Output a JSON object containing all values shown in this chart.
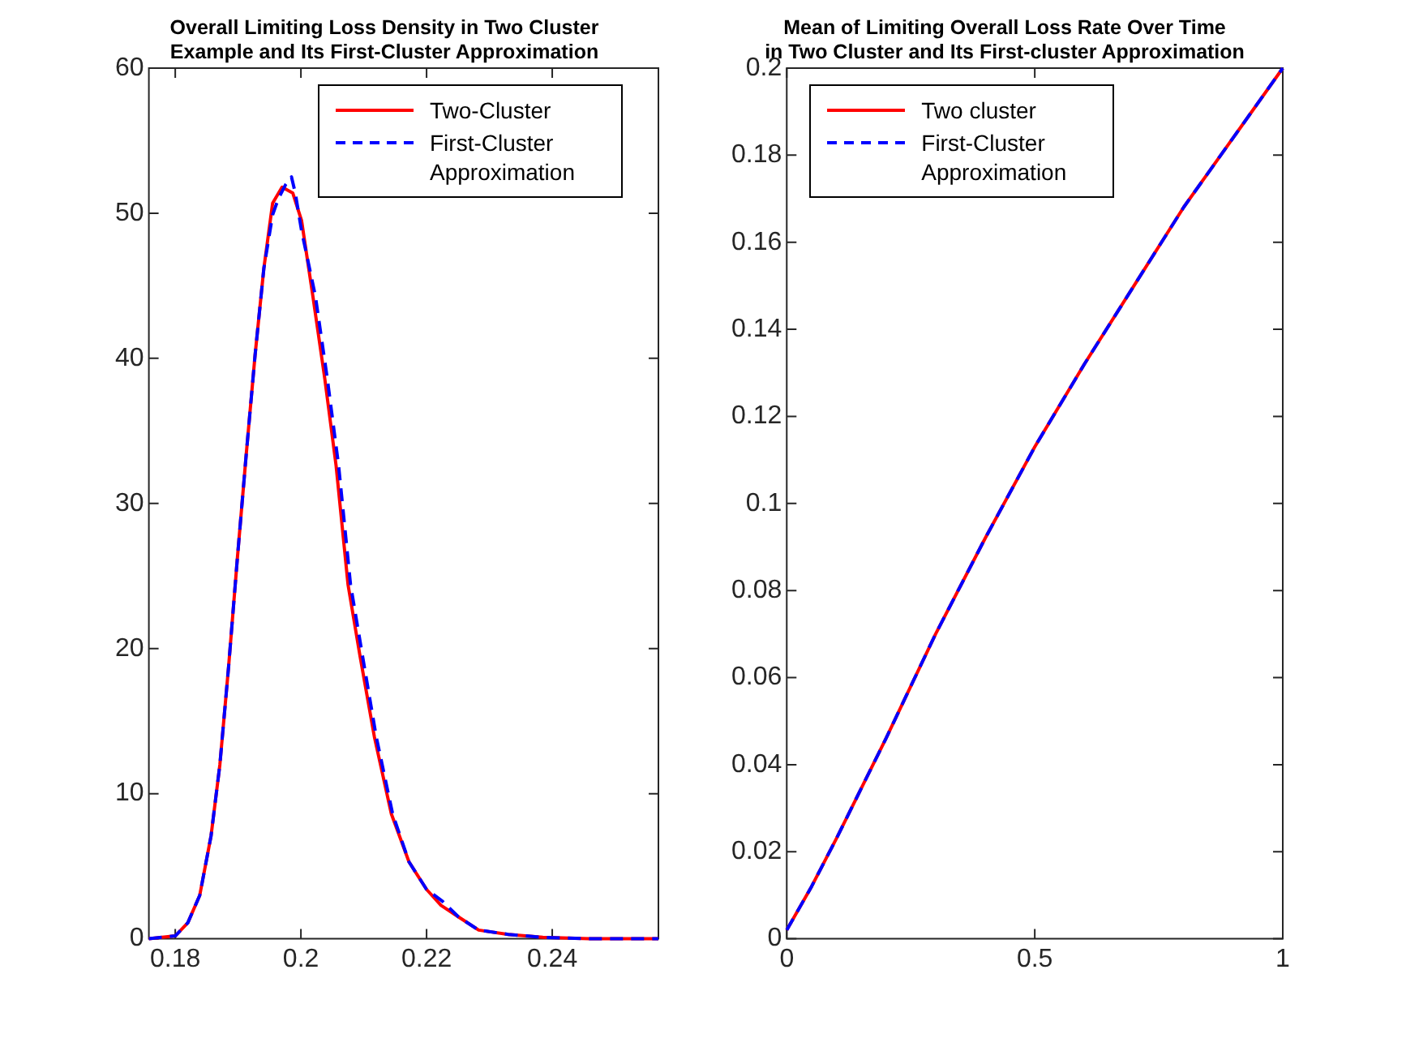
{
  "chart_data": [
    {
      "type": "line",
      "title": "Overall Limiting Loss Density in Two Cluster\nExample and Its First-Cluster Approximation",
      "legend": "top right",
      "xlim": [
        0.1758,
        0.2569
      ],
      "xticks": [
        0.18,
        0.2,
        0.22,
        0.24
      ],
      "ylim": [
        0,
        60
      ],
      "yticks": [
        0,
        10,
        20,
        30,
        40,
        50,
        60
      ],
      "series": [
        {
          "name": "Two-Cluster",
          "color": "#ff0000",
          "line_style": "solid",
          "x": [
            0.1758,
            0.18,
            0.182,
            0.1839,
            0.1857,
            0.1871,
            0.1885,
            0.1899,
            0.1913,
            0.1927,
            0.1941,
            0.1955,
            0.197,
            0.1987,
            0.2001,
            0.2019,
            0.2038,
            0.2056,
            0.2075,
            0.2094,
            0.2117,
            0.2144,
            0.2172,
            0.22,
            0.2223,
            0.2251,
            0.2283,
            0.233,
            0.2385,
            0.2459,
            0.2569
          ],
          "values": [
            0,
            0.2,
            1.1,
            3,
            7.1,
            12,
            18.8,
            26.3,
            33.4,
            40.2,
            46.2,
            50.7,
            51.8,
            51.4,
            49.5,
            44.3,
            38.6,
            32.6,
            24.4,
            19.5,
            13.9,
            8.6,
            5.3,
            3.4,
            2.3,
            1.5,
            0.6,
            0.3,
            0.1,
            0,
            0
          ]
        },
        {
          "name": "First-Cluster Approximation",
          "color": "#0000ff",
          "line_style": "dashed",
          "x": [
            0.1758,
            0.18,
            0.182,
            0.1839,
            0.1857,
            0.1871,
            0.1885,
            0.1899,
            0.1913,
            0.1927,
            0.1941,
            0.1955,
            0.1964,
            0.1976,
            0.1985,
            0.1991,
            0.2001,
            0.2023,
            0.2042,
            0.206,
            0.2079,
            0.2098,
            0.212,
            0.2146,
            0.2172,
            0.22,
            0.2225,
            0.2251,
            0.2283,
            0.233,
            0.2385,
            0.2459,
            0.2569
          ],
          "values": [
            0,
            0.2,
            1.1,
            3,
            7.1,
            12,
            18.8,
            26.3,
            33.4,
            40.2,
            46.2,
            49.9,
            51,
            52,
            52.5,
            51.4,
            48.8,
            44.3,
            38.6,
            32.6,
            24.4,
            19.5,
            13.9,
            8.6,
            5.3,
            3.4,
            2.6,
            1.5,
            0.6,
            0.3,
            0.1,
            0,
            0
          ]
        }
      ]
    },
    {
      "type": "line",
      "title": "Mean of Limiting Overall Loss Rate Over Time\nin Two Cluster and Its First-cluster Approximation",
      "legend": "top left",
      "xlim": [
        0,
        1
      ],
      "xticks": [
        0,
        0.5,
        1
      ],
      "ylim": [
        0,
        0.2
      ],
      "yticks": [
        0,
        0.02,
        0.04,
        0.06,
        0.08,
        0.1,
        0.12,
        0.14,
        0.16,
        0.18,
        0.2
      ],
      "series": [
        {
          "name": "Two cluster",
          "color": "#ff0000",
          "line_style": "solid",
          "x": [
            0,
            0.05,
            0.1,
            0.2,
            0.3,
            0.4,
            0.5,
            0.6,
            0.7,
            0.8,
            0.9,
            1
          ],
          "values": [
            0.002,
            0.012,
            0.023,
            0.046,
            0.07,
            0.092,
            0.113,
            0.132,
            0.15,
            0.168,
            0.184,
            0.2
          ]
        },
        {
          "name": "First-Cluster Approximation",
          "color": "#0000ff",
          "line_style": "dashed",
          "x": [
            0,
            0.05,
            0.1,
            0.2,
            0.3,
            0.4,
            0.5,
            0.6,
            0.7,
            0.8,
            0.9,
            1
          ],
          "values": [
            0.002,
            0.012,
            0.023,
            0.046,
            0.07,
            0.092,
            0.113,
            0.132,
            0.15,
            0.168,
            0.184,
            0.2
          ]
        }
      ]
    }
  ]
}
